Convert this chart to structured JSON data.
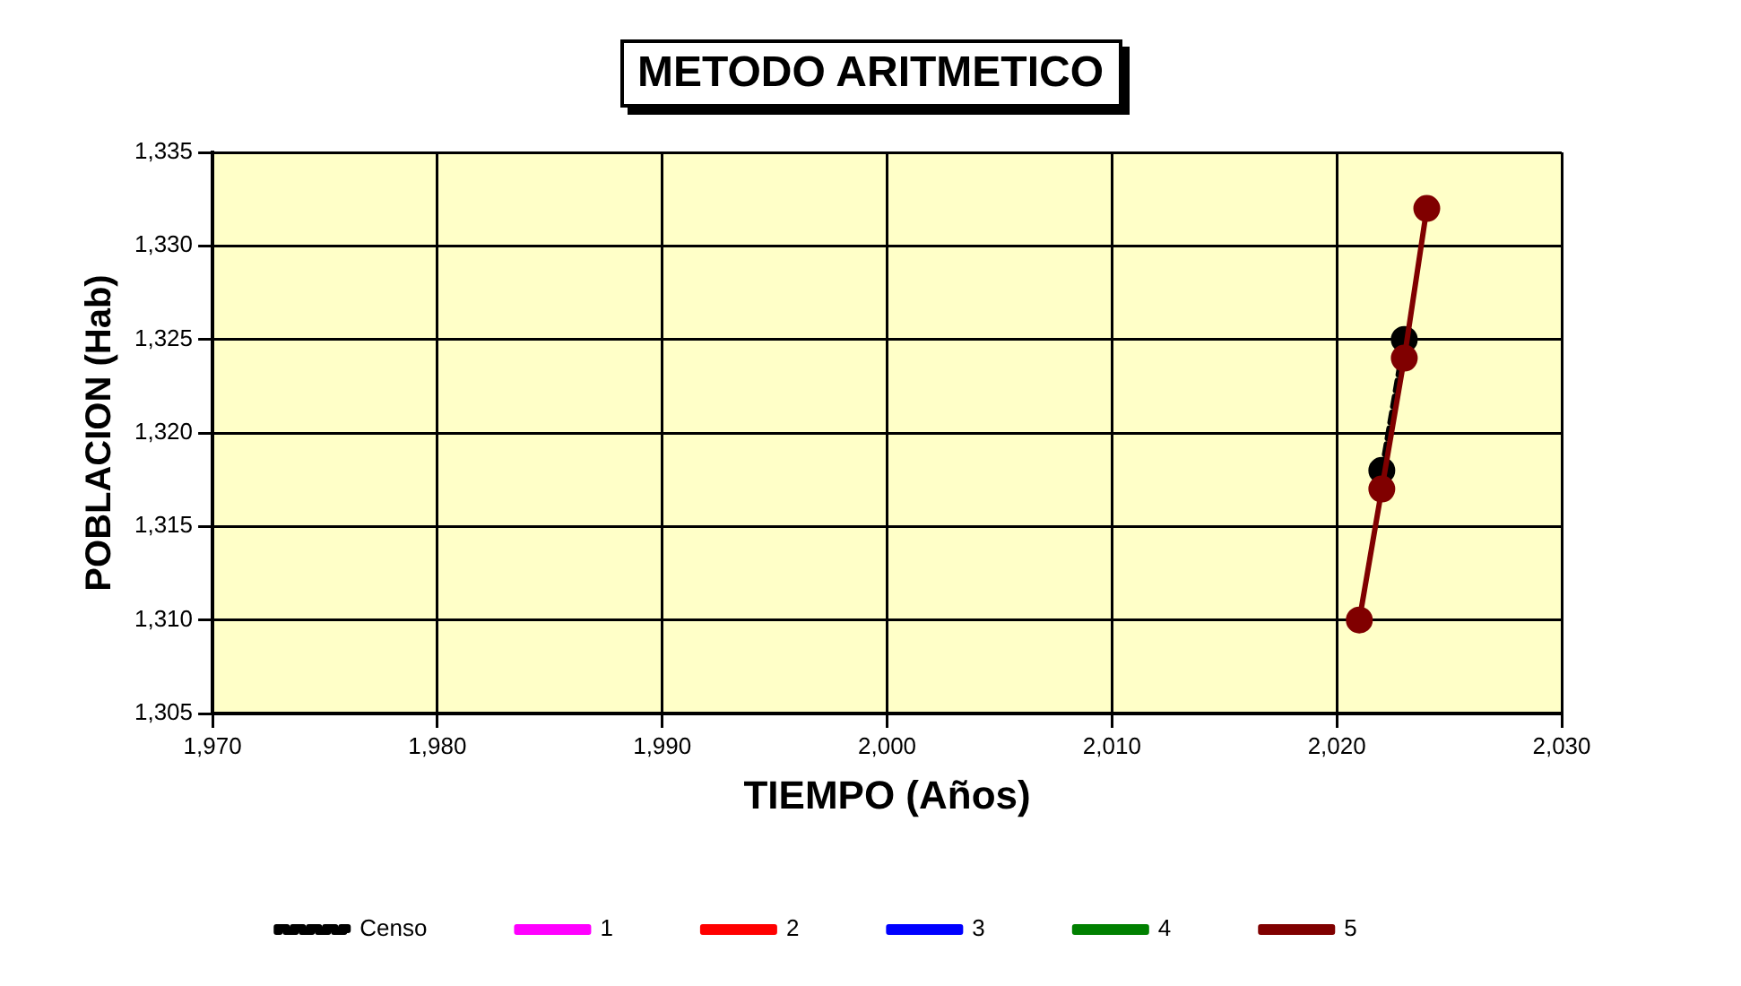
{
  "chart_data": {
    "type": "line",
    "title": "METODO ARITMETICO",
    "xlabel": "TIEMPO (Años)",
    "ylabel": "POBLACION (Hab)",
    "x": [
      2021,
      2022,
      2023,
      2024
    ],
    "series": [
      {
        "name": "Censo",
        "color": "#000000",
        "x": [
          2022,
          2023
        ],
        "values": [
          1318,
          1325
        ],
        "line_style": "dashed"
      },
      {
        "name": "1",
        "color": "#ff00ff",
        "values": [
          null,
          null,
          null,
          null
        ]
      },
      {
        "name": "2",
        "color": "#ff0000",
        "values": [
          null,
          null,
          null,
          null
        ]
      },
      {
        "name": "3",
        "color": "#0000ff",
        "values": [
          null,
          null,
          null,
          null
        ]
      },
      {
        "name": "4",
        "color": "#008000",
        "values": [
          null,
          null,
          null,
          null
        ]
      },
      {
        "name": "5",
        "color": "#800000",
        "values": [
          1310,
          1317,
          1324,
          1332
        ]
      }
    ],
    "xlim": [
      1970,
      2030
    ],
    "xticks": [
      {
        "value": 1970,
        "label": "1,970"
      },
      {
        "value": 1980,
        "label": "1,980"
      },
      {
        "value": 1990,
        "label": "1,990"
      },
      {
        "value": 2000,
        "label": "2,000"
      },
      {
        "value": 2010,
        "label": "2,010"
      },
      {
        "value": 2020,
        "label": "2,020"
      },
      {
        "value": 2030,
        "label": "2,030"
      }
    ],
    "ylim": [
      1305,
      1335
    ],
    "yticks": [
      {
        "value": 1305,
        "label": "1,305"
      },
      {
        "value": 1310,
        "label": "1,310"
      },
      {
        "value": 1315,
        "label": "1,315"
      },
      {
        "value": 1320,
        "label": "1,320"
      },
      {
        "value": 1325,
        "label": "1,325"
      },
      {
        "value": 1330,
        "label": "1,330"
      },
      {
        "value": 1335,
        "label": "1,335"
      }
    ],
    "grid": true,
    "legend": "bottom",
    "marker": "circle"
  }
}
